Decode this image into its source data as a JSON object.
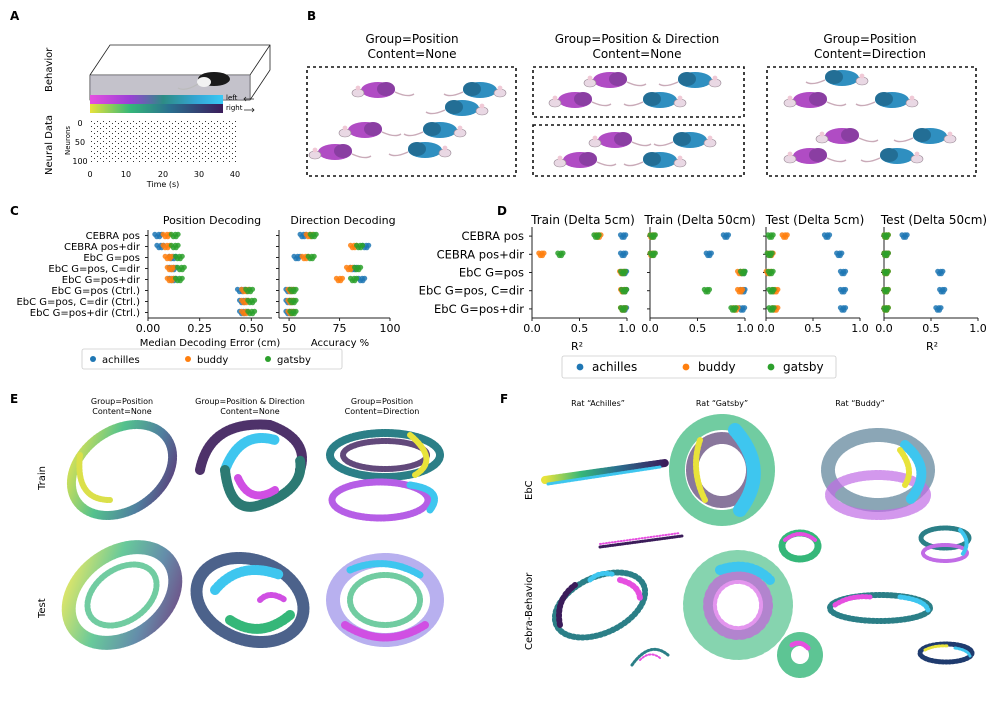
{
  "panel_labels": {
    "a": "A",
    "b": "B",
    "c": "C",
    "d": "D",
    "e": "E",
    "f": "F"
  },
  "panel_a": {
    "behavior_label": "Behavior",
    "neural_label": "Neural Data",
    "neurons_label": "Neurons",
    "time_label": "Time (s)",
    "legend_left": "left",
    "legend_right": "right",
    "y_ticks": [
      "0",
      "50",
      "100"
    ],
    "x_ticks": [
      "0",
      "10",
      "20",
      "30",
      "40"
    ]
  },
  "panel_b": {
    "titles": [
      [
        "Group=Position",
        "Content=None"
      ],
      [
        "Group=Position & Direction",
        "Content=None"
      ],
      [
        "Group=Position",
        "Content=Direction"
      ]
    ]
  },
  "colors": {
    "achilles": "#1f77b4",
    "buddy": "#ff7f0e",
    "gatsby": "#2ca02c"
  },
  "legend": [
    "achilles",
    "buddy",
    "gatsby"
  ],
  "chart_data": [
    {
      "id": "c_position",
      "type": "scatter",
      "title": "Position Decoding",
      "xlabel": "Median Decoding Error (cm)",
      "xlim": [
        0,
        0.6
      ],
      "xticks": [
        "0.00",
        "0.25",
        "0.50"
      ],
      "xtick_values": [
        0,
        0.25,
        0.5
      ],
      "categories": [
        "CEBRA pos",
        "CEBRA pos+dir",
        "EbC G=pos",
        "EbC G=pos, C=dir",
        "EbC G=pos+dir",
        "EbC G=pos (Ctrl.)",
        "EbC G=pos, C=dir (Ctrl.)",
        "EbC G=pos+dir (Ctrl.)"
      ],
      "series": [
        {
          "name": "achilles",
          "values": [
            0.05,
            0.06,
            0.12,
            0.12,
            0.12,
            0.45,
            0.46,
            0.46
          ]
        },
        {
          "name": "buddy",
          "values": [
            0.09,
            0.09,
            0.1,
            0.11,
            0.11,
            0.47,
            0.47,
            0.47
          ]
        },
        {
          "name": "gatsby",
          "values": [
            0.13,
            0.13,
            0.15,
            0.16,
            0.15,
            0.49,
            0.5,
            0.5
          ]
        }
      ]
    },
    {
      "id": "c_direction",
      "type": "scatter",
      "title": "Direction Decoding",
      "xlabel": "Accuracy %",
      "xlim": [
        45,
        100
      ],
      "xticks": [
        "50",
        "75",
        "100"
      ],
      "xtick_values": [
        50,
        75,
        100
      ],
      "categories": [
        "CEBRA pos",
        "CEBRA pos+dir",
        "EbC G=pos",
        "EbC G=pos, C=dir",
        "EbC G=pos+dir",
        "EbC G=pos (Ctrl.)",
        "EbC G=pos, C=dir (Ctrl.)",
        "EbC G=pos+dir (Ctrl.)"
      ],
      "series": [
        {
          "name": "achilles",
          "values": [
            57,
            88,
            54,
            82,
            86,
            50,
            50,
            50
          ]
        },
        {
          "name": "buddy",
          "values": [
            60,
            82,
            58,
            80,
            75,
            51,
            51,
            51
          ]
        },
        {
          "name": "gatsby",
          "values": [
            62,
            85,
            61,
            84,
            82,
            52,
            52,
            52
          ]
        }
      ]
    },
    {
      "id": "d_train5",
      "type": "scatter",
      "title": "Train (Delta 5cm)",
      "xlabel": "R²",
      "xlim": [
        0,
        1.0
      ],
      "xticks": [
        "0.0",
        "0.5",
        "1.0"
      ],
      "xtick_values": [
        0,
        0.5,
        1.0
      ],
      "categories": [
        "CEBRA pos",
        "CEBRA pos+dir",
        "EbC G=pos",
        "EbC G=pos, C=dir",
        "EbC G=pos+dir"
      ],
      "series": [
        {
          "name": "achilles",
          "values": [
            0.96,
            0.96,
            0.97,
            0.97,
            0.97
          ]
        },
        {
          "name": "buddy",
          "values": [
            0.7,
            0.1,
            0.95,
            0.96,
            0.96
          ]
        },
        {
          "name": "gatsby",
          "values": [
            0.68,
            0.3,
            0.96,
            0.97,
            0.96
          ]
        }
      ]
    },
    {
      "id": "d_train50",
      "type": "scatter",
      "title": "Train (Delta 50cm)",
      "xlabel": "",
      "xlim": [
        0,
        1.0
      ],
      "xticks": [
        "0.0",
        "0.5",
        "1.0"
      ],
      "xtick_values": [
        0,
        0.5,
        1.0
      ],
      "categories": [
        "CEBRA pos",
        "CEBRA pos+dir",
        "EbC G=pos",
        "EbC G=pos, C=dir",
        "EbC G=pos+dir"
      ],
      "series": [
        {
          "name": "achilles",
          "values": [
            0.8,
            0.62,
            0.98,
            0.98,
            0.97
          ]
        },
        {
          "name": "buddy",
          "values": [
            0.02,
            0.02,
            0.95,
            0.95,
            0.9
          ]
        },
        {
          "name": "gatsby",
          "values": [
            0.03,
            0.03,
            0.98,
            0.6,
            0.88
          ]
        }
      ]
    },
    {
      "id": "d_test5",
      "type": "scatter",
      "title": "Test (Delta 5cm)",
      "xlabel": "",
      "xlim": [
        0,
        1.0
      ],
      "xticks": [
        "0.0",
        "0.5",
        "1.0"
      ],
      "xtick_values": [
        0,
        0.5,
        1.0
      ],
      "categories": [
        "CEBRA pos",
        "CEBRA pos+dir",
        "EbC G=pos",
        "EbC G=pos, C=dir",
        "EbC G=pos+dir"
      ],
      "series": [
        {
          "name": "achilles",
          "values": [
            0.65,
            0.78,
            0.82,
            0.82,
            0.82
          ]
        },
        {
          "name": "buddy",
          "values": [
            0.2,
            0.05,
            0.03,
            0.1,
            0.1
          ]
        },
        {
          "name": "gatsby",
          "values": [
            0.05,
            0.04,
            0.05,
            0.06,
            0.06
          ]
        }
      ]
    },
    {
      "id": "d_test50",
      "type": "scatter",
      "title": "Test (Delta 50cm)",
      "xlabel": "R²",
      "xlim": [
        0,
        1.0
      ],
      "xticks": [
        "0.0",
        "0.5",
        "1.0"
      ],
      "xtick_values": [
        0,
        0.5,
        1.0
      ],
      "categories": [
        "CEBRA pos",
        "CEBRA pos+dir",
        "EbC G=pos",
        "EbC G=pos, C=dir",
        "EbC G=pos+dir"
      ],
      "series": [
        {
          "name": "achilles",
          "values": [
            0.22,
            0.02,
            0.6,
            0.62,
            0.58
          ]
        },
        {
          "name": "buddy",
          "values": [
            0.02,
            0.02,
            0.02,
            0.02,
            0.02
          ]
        },
        {
          "name": "gatsby",
          "values": [
            0.02,
            0.02,
            0.02,
            0.02,
            0.02
          ]
        }
      ]
    }
  ],
  "panel_c": {
    "xlabel_left": "Median Decoding Error (cm)",
    "xlabel_right": "Accuracy %"
  },
  "panel_e": {
    "titles": [
      [
        "Group=Position",
        "Content=None"
      ],
      [
        "Group=Position & Direction",
        "Content=None"
      ],
      [
        "Group=Position",
        "Content=Direction"
      ]
    ],
    "rows": [
      "Train",
      "Test"
    ]
  },
  "panel_f": {
    "titles": [
      "Rat “Achilles”",
      "Rat “Gatsby”",
      "Rat “Buddy”"
    ],
    "rows": [
      "EbC",
      "Cebra-Behavior"
    ]
  }
}
